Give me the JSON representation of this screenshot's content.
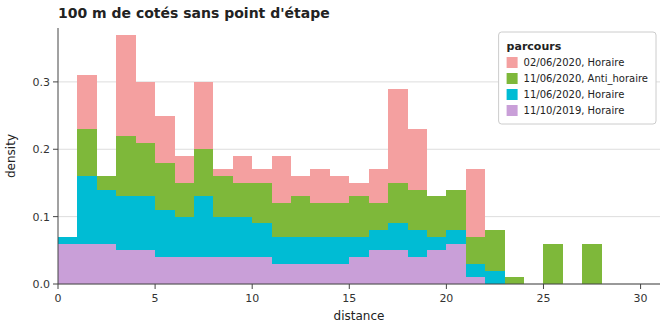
{
  "chart_data": {
    "type": "bar",
    "stacked": true,
    "title": "100 m de cotés sans point d'étape",
    "x_label": "distance",
    "y_label": "density",
    "legend_title": "parcours",
    "legend": "upper right",
    "grid": true,
    "x": [
      0,
      1,
      2,
      3,
      4,
      5,
      6,
      7,
      8,
      9,
      10,
      11,
      12,
      13,
      14,
      15,
      16,
      17,
      18,
      19,
      20,
      21,
      22,
      23,
      24,
      25,
      26,
      27,
      28,
      29,
      30
    ],
    "series": [
      {
        "name": "11/10/2019, Horaire",
        "color": "#C99FD8",
        "values": [
          0.06,
          0.06,
          0.06,
          0.05,
          0.05,
          0.04,
          0.04,
          0.04,
          0.04,
          0.04,
          0.04,
          0.03,
          0.03,
          0.03,
          0.03,
          0.04,
          0.05,
          0.05,
          0.04,
          0.05,
          0.06,
          0.01,
          0.0,
          0.0,
          0.0,
          0.0,
          0.0,
          0.0,
          0.0,
          0.0,
          0.0
        ]
      },
      {
        "name": "11/06/2020, Horaire",
        "color": "#00BCD4",
        "values": [
          0.01,
          0.1,
          0.08,
          0.08,
          0.08,
          0.07,
          0.06,
          0.09,
          0.06,
          0.06,
          0.05,
          0.04,
          0.04,
          0.04,
          0.04,
          0.03,
          0.03,
          0.04,
          0.04,
          0.02,
          0.02,
          0.02,
          0.02,
          0.0,
          0.0,
          0.0,
          0.0,
          0.0,
          0.0,
          0.0,
          0.0
        ]
      },
      {
        "name": "11/06/2020, Anti_horaire",
        "color": "#7EB83A",
        "values": [
          0.0,
          0.07,
          0.02,
          0.09,
          0.08,
          0.07,
          0.05,
          0.07,
          0.06,
          0.05,
          0.06,
          0.05,
          0.06,
          0.05,
          0.05,
          0.06,
          0.04,
          0.06,
          0.06,
          0.06,
          0.06,
          0.04,
          0.06,
          0.01,
          0.0,
          0.06,
          0.0,
          0.06,
          0.0,
          0.0,
          0.0
        ]
      },
      {
        "name": "02/06/2020, Horaire",
        "color": "#F4A0A0",
        "values": [
          0.0,
          0.08,
          0.0,
          0.15,
          0.09,
          0.07,
          0.04,
          0.1,
          0.01,
          0.04,
          0.02,
          0.07,
          0.03,
          0.05,
          0.04,
          0.02,
          0.05,
          0.14,
          0.09,
          0.0,
          0.0,
          0.1,
          0.0,
          0.0,
          0.0,
          0.0,
          0.0,
          0.0,
          0.0,
          0.0,
          0.0
        ]
      }
    ],
    "xlim": [
      0,
      31
    ],
    "ylim": [
      0,
      0.38
    ],
    "xticks": [
      0,
      5,
      10,
      15,
      20,
      25,
      30
    ],
    "yticks": [
      {
        "value": 0.0,
        "label": "0.0"
      },
      0.1,
      0.2,
      0.3
    ]
  }
}
